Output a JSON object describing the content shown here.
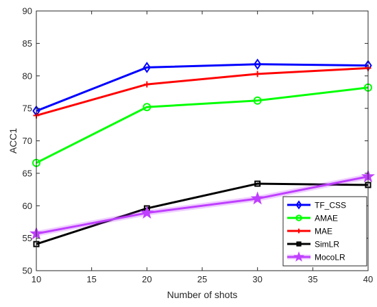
{
  "chart_data": {
    "type": "line",
    "title": "",
    "xlabel": "Number of shots",
    "ylabel": "ACC1",
    "xlim": [
      10,
      40
    ],
    "ylim": [
      50,
      90
    ],
    "xticks": [
      10,
      15,
      20,
      25,
      30,
      35,
      40
    ],
    "yticks": [
      50,
      55,
      60,
      65,
      70,
      75,
      80,
      85,
      90
    ],
    "grid": false,
    "legend_position": "bottom-right",
    "x": [
      10,
      20,
      30,
      40
    ],
    "series": [
      {
        "name": "TF_CSS",
        "color": "#0000ff",
        "marker": "diamond",
        "values": [
          74.6,
          81.3,
          81.8,
          81.6
        ]
      },
      {
        "name": "AMAE",
        "color": "#00ff00",
        "marker": "circle",
        "values": [
          66.6,
          75.2,
          76.2,
          78.2
        ]
      },
      {
        "name": "MAE",
        "color": "#ff0000",
        "marker": "plus",
        "values": [
          73.9,
          78.7,
          80.3,
          81.2
        ]
      },
      {
        "name": "SimLR",
        "color": "#000000",
        "marker": "square",
        "values": [
          54.1,
          59.6,
          63.4,
          63.2
        ]
      },
      {
        "name": "MocoLR",
        "color": "#bf3fff",
        "marker": "star",
        "values": [
          55.7,
          58.9,
          61.1,
          64.5
        ]
      }
    ]
  }
}
